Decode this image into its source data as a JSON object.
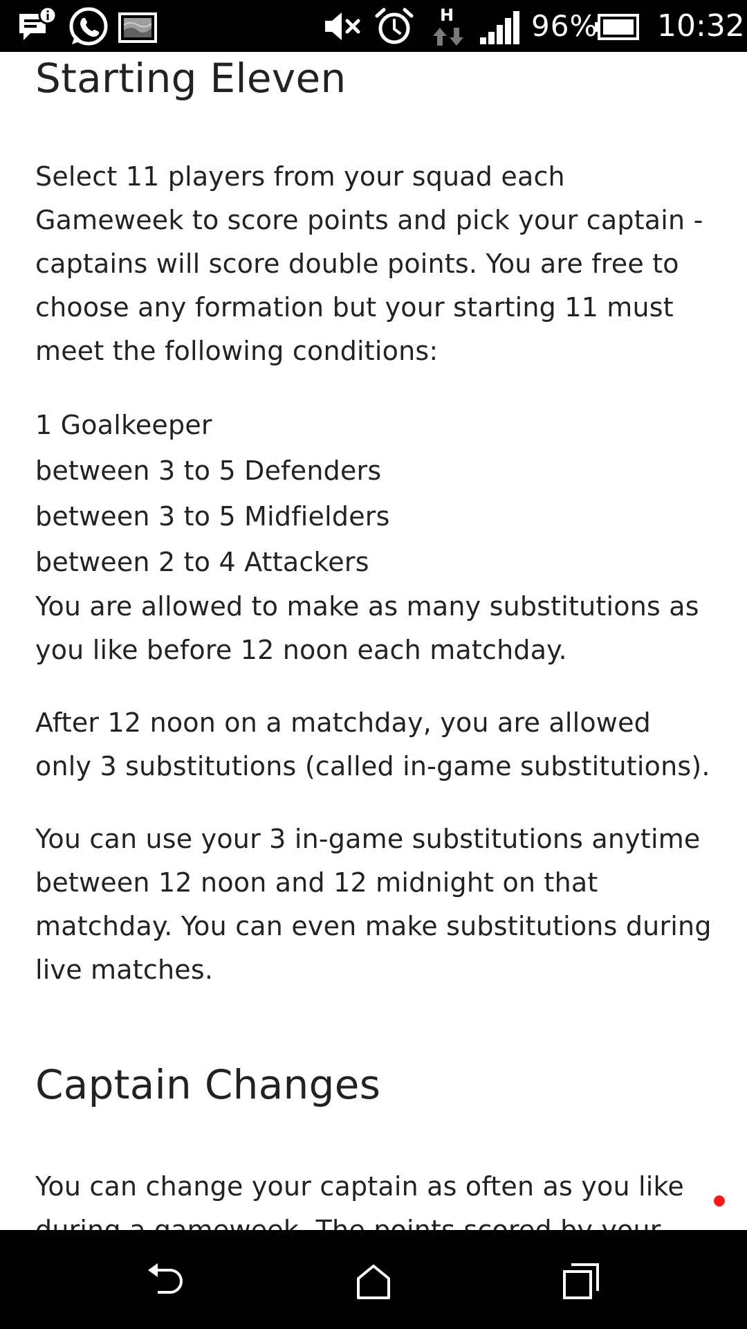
{
  "status_bar": {
    "battery_percent": "96%",
    "time": "10:32",
    "network_type": "H",
    "icons": [
      "message-info-icon",
      "whatsapp-icon",
      "gallery-icon",
      "mute-icon",
      "alarm-icon",
      "data-transfer-icon",
      "signal-icon",
      "battery-icon"
    ]
  },
  "article": {
    "starting_eleven": {
      "title": "Starting Eleven",
      "intro": "Select 11 players from your squad each Gameweek to score points and pick your captain - captains will score double points. You are free to choose any formation but your starting 11 must meet the following conditions:",
      "conditions": [
        "1 Goalkeeper",
        "between 3 to 5 Defenders",
        "between 3 to 5 Midfielders",
        "between 2 to 4 Attackers"
      ],
      "substitutions": "You are allowed to make as many substitutions as you like before 12 noon each matchday.",
      "after_noon": "After 12 noon on a matchday, you are allowed only 3 substitutions (called in-game substitutions).",
      "in_game": "You can use your 3 in-game substitutions anytime between 12 noon and 12 midnight on that matchday. You can even make substitutions during live matches."
    },
    "captain_changes": {
      "title": "Captain Changes",
      "text": "You can change your captain as often as you like during a gameweek. The points scored by your"
    }
  },
  "colors": {
    "text": "#222222",
    "background": "#ffffff",
    "system_bars": "#000000",
    "notification_dot": "#ff1a1a"
  },
  "nav_bar": {
    "buttons": [
      "back-icon",
      "home-icon",
      "recents-icon"
    ]
  }
}
